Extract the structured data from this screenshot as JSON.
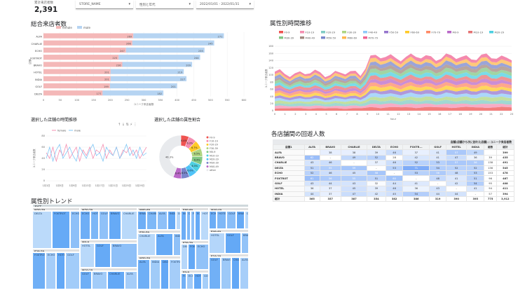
{
  "kpi": {
    "label": "累計来店者数",
    "value": "2,391"
  },
  "filters": {
    "store": "STORE_NAME",
    "gender": "性別と年代",
    "date": "2022/01/01 - 2022/01/31"
  },
  "panels": {
    "total_visitors": "総合来店者数",
    "time_trend": "属性別時間推移",
    "selected_time": "選択した店舗の時間推移",
    "selected_ratio": "選択した店舗の属性割合",
    "revisit": "各店舗間の回遊人数",
    "trend": "属性別トレンド"
  },
  "bar_chart": {
    "legend": [
      "female",
      "male"
    ],
    "colors": {
      "female": "#f4b8b8",
      "male": "#b6d4f2"
    },
    "stores": [
      "ALFA",
      "CHARLIE",
      "ECHO",
      "FOXTROT",
      "BRAVO",
      "HOTEL",
      "INDIA",
      "GOLF",
      "DELTA"
    ],
    "female": [
      269,
      266,
      247,
      225,
      236,
      201,
      201,
      199,
      177
    ],
    "male": [
      271,
      245,
      235,
      244,
      209,
      219,
      227,
      201,
      182
    ],
    "xmax": 600,
    "ticks": [
      "0",
      "50",
      "100",
      "150",
      "200",
      "250",
      "300",
      "350",
      "400",
      "450",
      "500",
      "550",
      "600"
    ],
    "xlabel": "ユニーク来店者数",
    "ylabel": "店舗"
  },
  "area_chart": {
    "legend": [
      "F0-9",
      "F10-19",
      "F20-29",
      "F30-39",
      "F40-49",
      "F50-59",
      "F60-69",
      "F70-79",
      "M0-9",
      "M10-19",
      "M20-29",
      "M30-39",
      "M40-49",
      "M50-59",
      "M60-69",
      "M70-79"
    ],
    "colors": [
      "#ef5350",
      "#f48fb1",
      "#80cbc4",
      "#aed581",
      "#90caf9",
      "#9575cd",
      "#ffca28",
      "#ff8a65",
      "#ba68c8",
      "#e57373",
      "#4dd0e1",
      "#81c784",
      "#a1887f",
      "#7986cb",
      "#ffb74d",
      "#f06292"
    ],
    "xticks": [
      "0",
      "1",
      "2",
      "3",
      "4",
      "5",
      "6",
      "7",
      "8",
      "9",
      "10",
      "11",
      "12",
      "13",
      "14",
      "15",
      "16",
      "17",
      "18",
      "19",
      "20",
      "21",
      "22",
      "23"
    ],
    "yticks": [
      "0",
      "20",
      "40",
      "60",
      "80",
      "100",
      "120",
      "140",
      "160",
      "180"
    ],
    "xlabel": "hour",
    "ylabel": "ユニーク来店者数"
  },
  "line_chart": {
    "legend": [
      "female",
      "male"
    ],
    "colors": [
      "#f48fb1",
      "#81c7f5"
    ],
    "female": [
      50,
      40,
      60,
      35,
      55,
      45,
      65,
      40,
      50,
      60,
      35,
      55,
      45,
      60,
      40,
      55,
      50,
      65,
      40,
      55,
      45,
      60,
      40,
      55,
      50,
      60,
      45,
      55,
      40,
      50,
      60
    ],
    "male": [
      40,
      60,
      35,
      55,
      65,
      40,
      50,
      60,
      45,
      35,
      60,
      50,
      40,
      55,
      65,
      45,
      50,
      35,
      60,
      50,
      45,
      60,
      40,
      50,
      65,
      45,
      55,
      40,
      60,
      45,
      50
    ],
    "xticks": [
      "1月1日",
      "1月3日",
      "1月5日",
      "1月7日",
      "1月9日",
      "1月11日",
      "1月13日",
      "1月15日",
      "1月17日",
      "1月19日",
      "1月21日",
      "1月23日",
      "1月25日",
      "1月27日",
      "1月29日",
      "1月31日"
    ],
    "yticks": [
      "0",
      "20",
      "40",
      "60",
      "80"
    ],
    "ylabel": "ユニーク来店者数"
  },
  "donut": {
    "center": "46.3%",
    "slices": [
      {
        "label": "F0-9",
        "value": 6.4,
        "color": "#ef5350"
      },
      {
        "label": "F10-19",
        "value": 6.3,
        "color": "#f48fb1"
      },
      {
        "label": "F20-29",
        "value": 6.7,
        "color": "#ffca28"
      },
      {
        "label": "F30-39",
        "value": 6.5,
        "color": "#aed581"
      },
      {
        "label": "M0-9",
        "value": 6.4,
        "color": "#81c784"
      },
      {
        "label": "M10-19",
        "value": 6.5,
        "color": "#4dd0e1"
      },
      {
        "label": "M20-29",
        "value": 6.6,
        "color": "#4fc3f7"
      },
      {
        "label": "M30-39",
        "value": 6.5,
        "color": "#7986cb"
      },
      {
        "label": "M40-49",
        "value": 6.4,
        "color": "#ba68c8"
      },
      {
        "label": "other",
        "value": 46.3,
        "color": "#e8eaed"
      }
    ],
    "slice_labels": [
      "6.4%",
      "6.3%",
      "6.7%",
      "6.5%",
      "6.4%",
      "6.5%",
      "6.6%",
      "6.5%",
      "6.4%"
    ]
  },
  "revisit_table": {
    "title": "店舗(店舗から次に訪れた店舗) / ユニーク来店者数",
    "columns": [
      "店舗1",
      "ALFA",
      "BRAVO",
      "CHARLIE",
      "DELTA",
      "ECHO",
      "FOXTR...",
      "GOLF",
      "HOTEL",
      "INDIA",
      "総数",
      "総計"
    ],
    "rows": [
      [
        "ALFA",
        "",
        "38",
        "38",
        "39",
        "46",
        "37",
        "41",
        "57",
        "49",
        "",
        "399"
      ],
      [
        "BRAVO",
        "62",
        "-",
        "49",
        "52",
        "28",
        "42",
        "41",
        "47",
        "36",
        "39",
        "435"
      ],
      [
        "CHARLIE",
        "43",
        "46",
        "-",
        "37",
        "46",
        "52",
        "53",
        "57",
        "56",
        "138",
        "491"
      ],
      [
        "DELTA",
        "51",
        "55",
        "59",
        "-",
        "53",
        "71",
        "54",
        "52",
        "52",
        "136",
        "545"
      ],
      [
        "ECHO",
        "52",
        "46",
        "45",
        "58",
        "-",
        "53",
        "56",
        "48",
        "53",
        "153",
        "478"
      ],
      [
        "FOXTROT",
        "61",
        "56",
        "55",
        "51",
        "60",
        "-",
        "48",
        "41",
        "51",
        "96",
        "467"
      ],
      [
        "GOLF",
        "43",
        "44",
        "43",
        "32",
        "44",
        "41",
        "-",
        "42",
        "54",
        "95",
        "408"
      ],
      [
        "HOTEL",
        "36",
        "37",
        "45",
        "39",
        "46",
        "36",
        "43",
        "-",
        "41",
        "94",
        "411"
      ],
      [
        "INDIA",
        "44",
        "37",
        "47",
        "42",
        "45",
        "54",
        "44",
        "44",
        "-",
        "57",
        "394"
      ],
      [
        "総計",
        "365",
        "357",
        "387",
        "354",
        "382",
        "386",
        "319",
        "390",
        "395",
        "775",
        "3,912"
      ]
    ]
  },
  "treemap": {
    "header": "すべて",
    "groups": [
      "M30-39",
      "F20-29",
      "M70-79",
      "M0-9",
      "M10-19",
      "M60-69",
      "F50-59",
      "M50-59",
      "F60-69",
      "F70-79",
      "F0-9",
      "M40-49",
      "F40-49",
      "F10-19"
    ],
    "cells": [
      "DELTA",
      "FOXTROT",
      "ECHO",
      "HOTEL",
      "GOLF",
      "BRAVO",
      "CHARLIE",
      "ALFA",
      "INDIA"
    ]
  }
}
